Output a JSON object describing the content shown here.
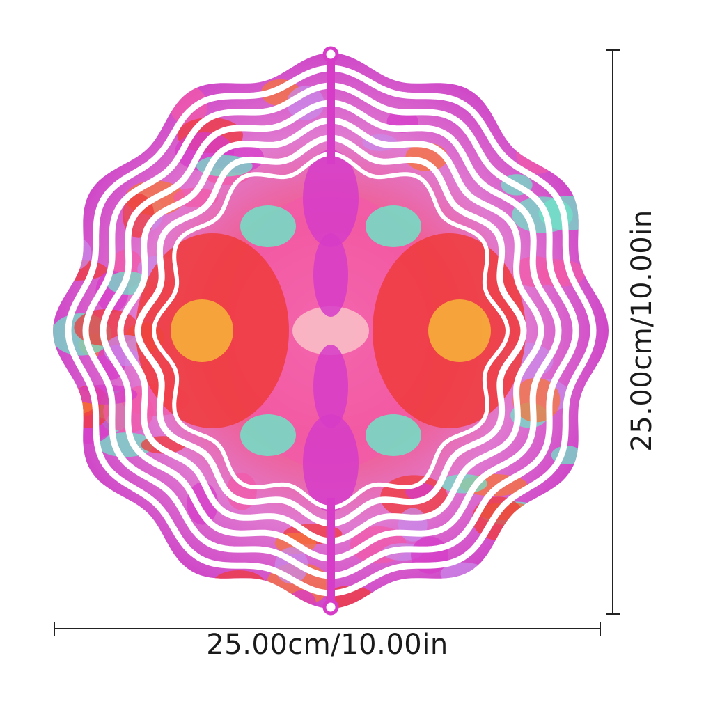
{
  "product": {
    "name": "",
    "colors": {
      "magenta": "#d63cc8",
      "pink": "#f25aa8",
      "orange": "#f5743a",
      "red": "#ef3b3b",
      "mint": "#6fe3c7",
      "yellow": "#f7b53a",
      "lavender": "#c98ae8"
    }
  },
  "dimensions": {
    "width_label": "25.00cm/10.00in",
    "height_label": "25.00cm/10.00in"
  }
}
